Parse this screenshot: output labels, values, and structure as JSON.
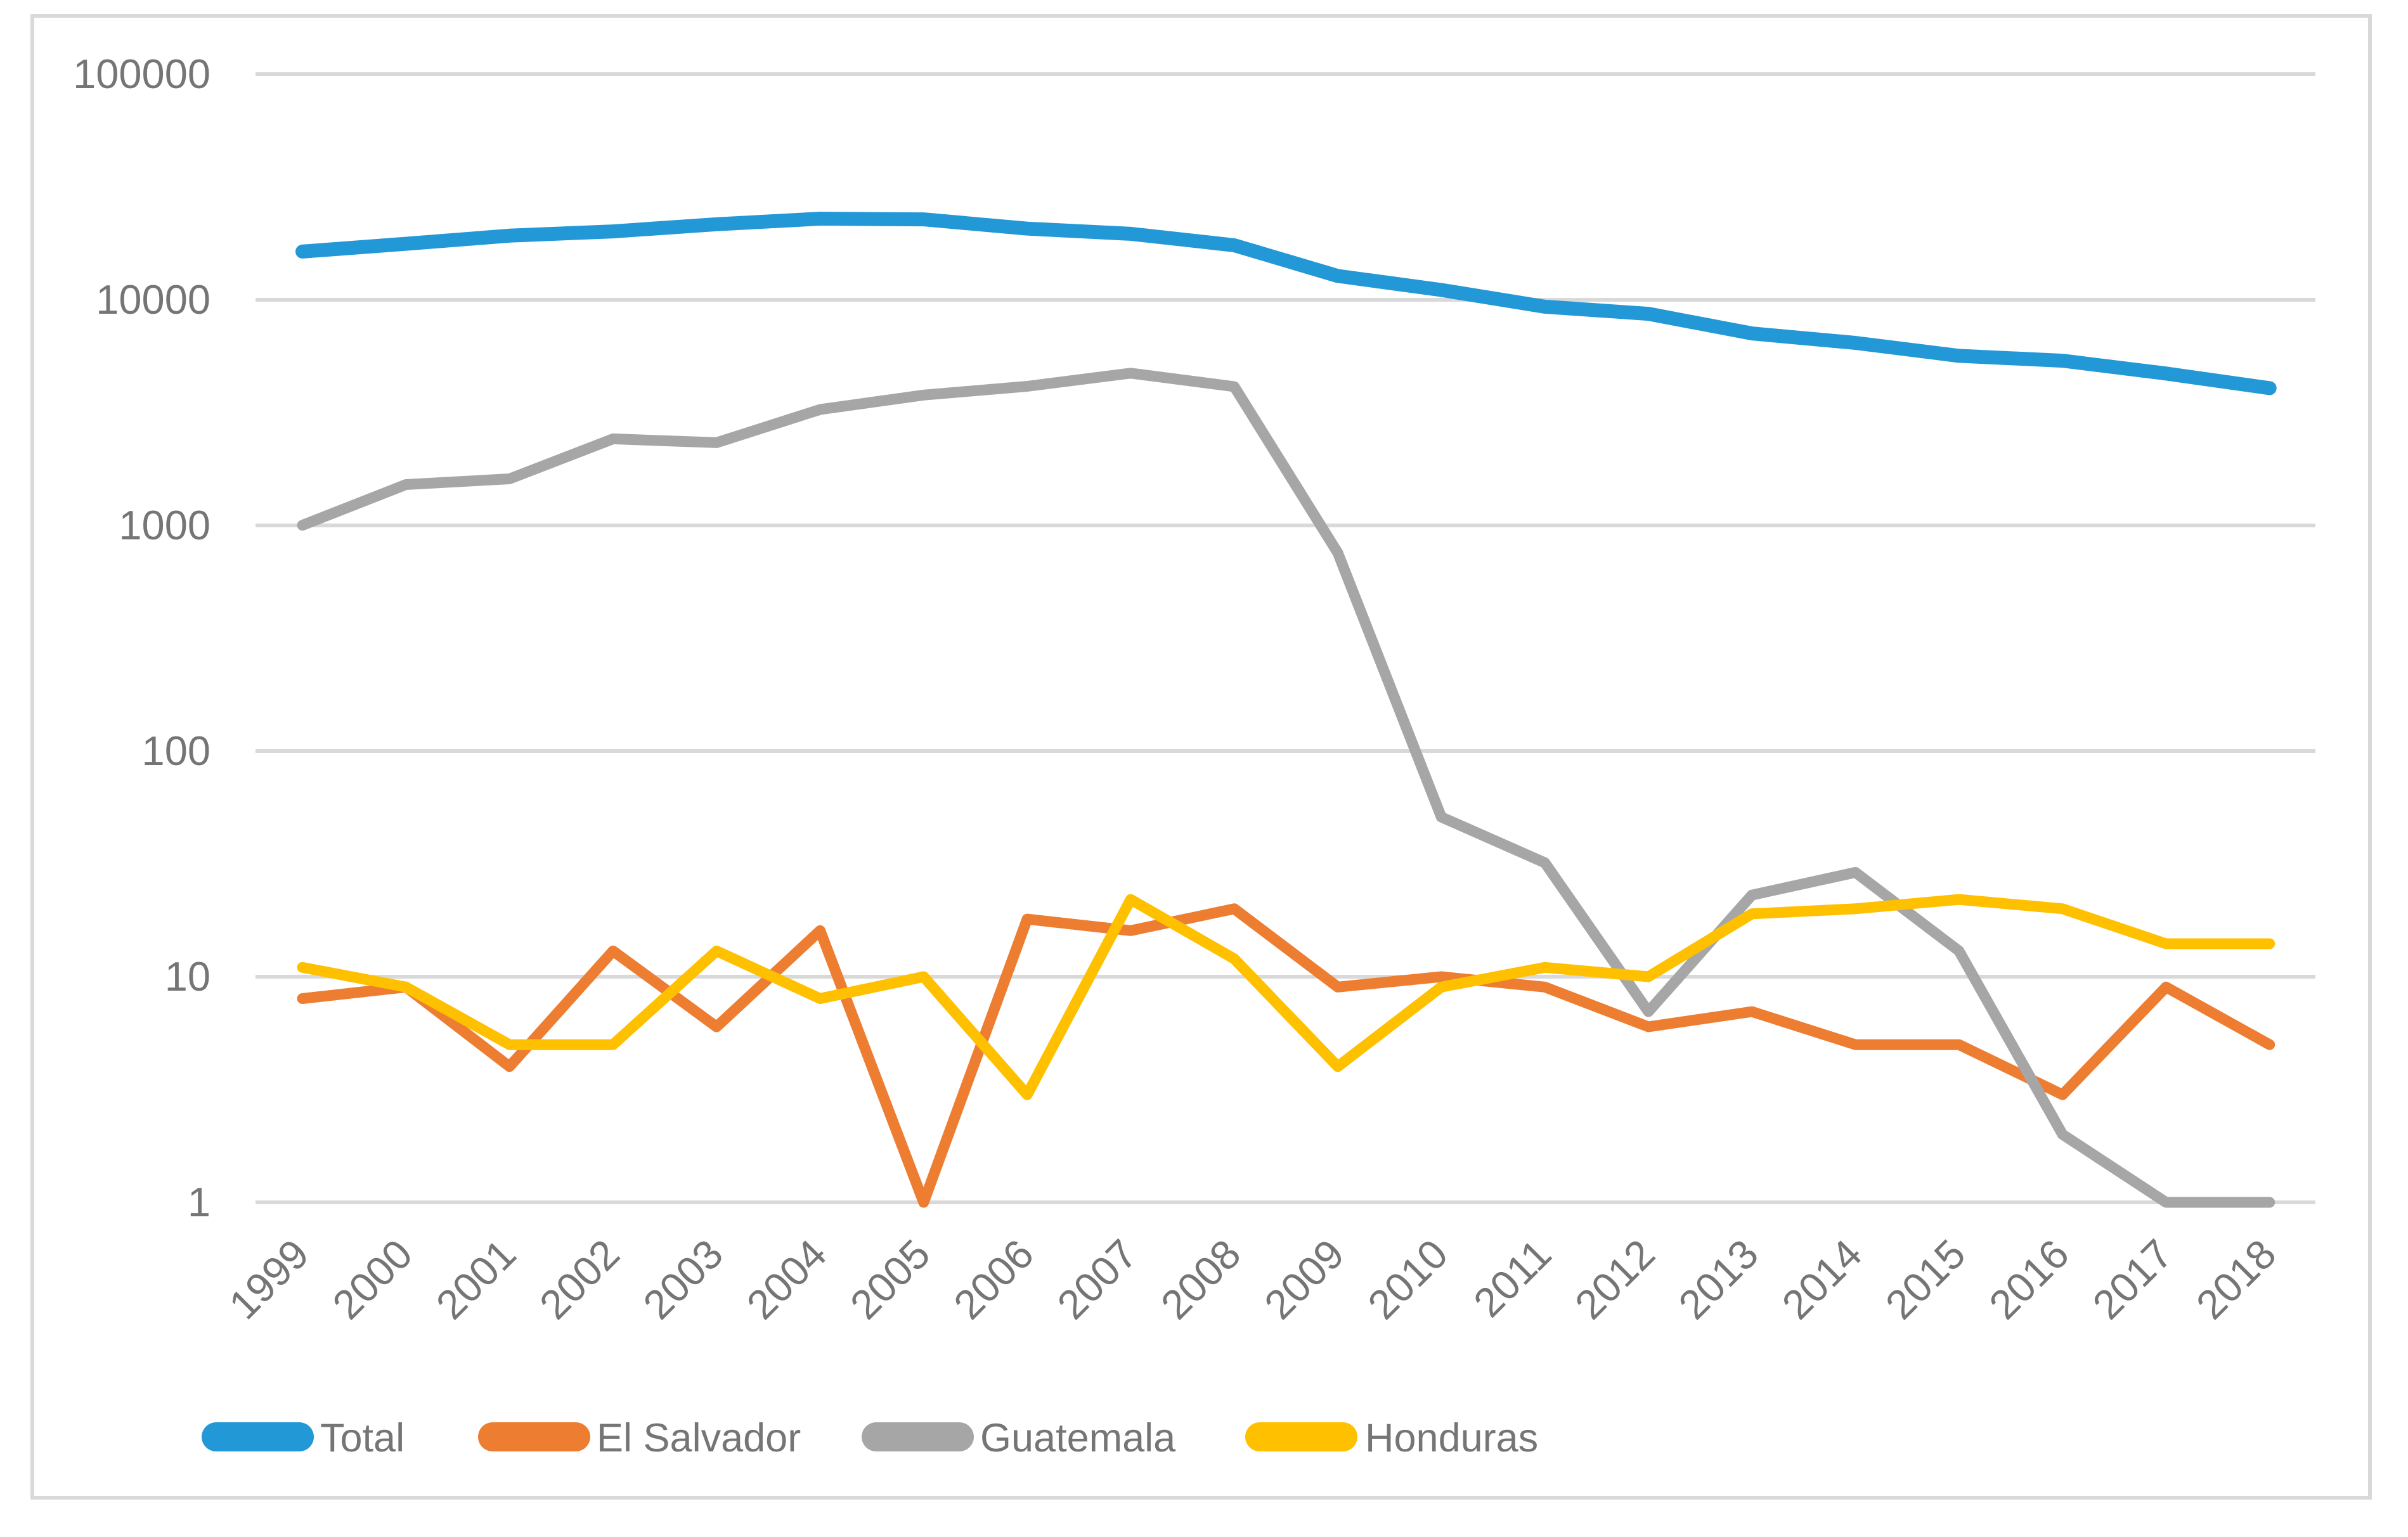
{
  "chart_data": {
    "type": "line",
    "title": "",
    "xlabel": "",
    "ylabel": "",
    "y_scale": "log10",
    "ylim": [
      1,
      100000
    ],
    "y_ticks": [
      100000,
      10000,
      1000,
      100,
      10,
      1
    ],
    "y_tick_labels": [
      "100000",
      "10000",
      "1000",
      "100",
      "10",
      "1"
    ],
    "grid": "horizontal",
    "legend_position": "bottom",
    "categories": [
      "1999",
      "2000",
      "2001",
      "2002",
      "2003",
      "2004",
      "2005",
      "2006",
      "2007",
      "2008",
      "2009",
      "2010",
      "2011",
      "2012",
      "2013",
      "2014",
      "2015",
      "2016",
      "2017",
      "2018"
    ],
    "series": [
      {
        "name": "Total",
        "color": "#2398d6",
        "values": [
          16363,
          17718,
          19237,
          20099,
          21616,
          22884,
          22728,
          20679,
          19613,
          17438,
          12753,
          11058,
          9319,
          8668,
          7092,
          6441,
          5647,
          5372,
          4714,
          4059
        ]
      },
      {
        "name": "El Salvador",
        "color": "#ed7d31",
        "values": [
          8,
          9,
          4,
          13,
          6,
          16,
          1,
          18,
          16,
          20,
          9,
          10,
          9,
          6,
          7,
          5,
          5,
          3,
          9,
          5
        ]
      },
      {
        "name": "Guatemala",
        "color": "#a6a6a6",
        "values": [
          1002,
          1518,
          1609,
          2419,
          2328,
          3264,
          3783,
          4135,
          4728,
          4123,
          756,
          51,
          32,
          7,
          23,
          29,
          13,
          2,
          1,
          1
        ]
      },
      {
        "name": "Honduras",
        "color": "#ffc000",
        "values": [
          11,
          9,
          5,
          5,
          13,
          8,
          10,
          3,
          22,
          12,
          4,
          9,
          11,
          10,
          19,
          20,
          22,
          20,
          14,
          14
        ]
      }
    ],
    "legend_labels": [
      "Total",
      "El Salvador",
      "Guatemala",
      "Honduras"
    ]
  }
}
